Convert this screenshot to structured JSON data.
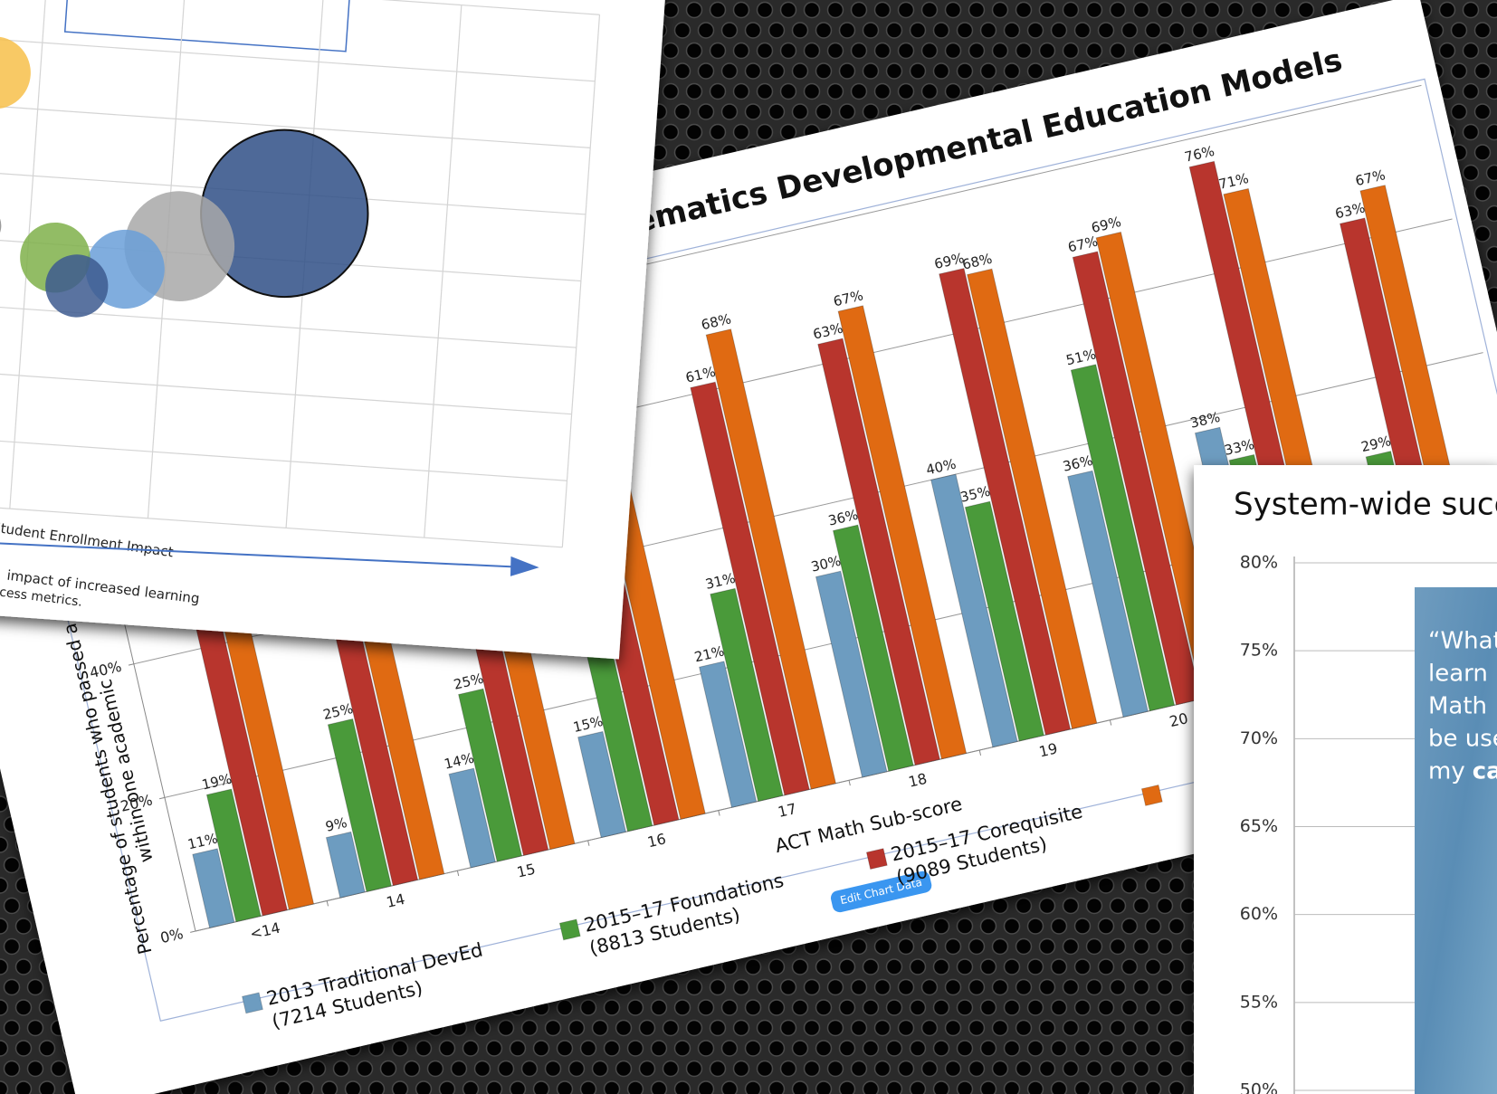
{
  "chart_data": [
    {
      "type": "scatter",
      "annotations": [
        "Student Enrollment Impact",
        "impact of increased learning",
        "cess metrics."
      ],
      "x": [
        0.2,
        0.37,
        0.71,
        1.09,
        1.83,
        -0.33,
        -0.35,
        -0.33
      ],
      "y": [
        3.8,
        3.4,
        3.7,
        4.1,
        4.7,
        6.5,
        4.2,
        3.7
      ],
      "sizes": [
        15,
        12,
        19,
        37,
        85,
        16,
        5,
        4
      ],
      "colors": [
        "#7fb04a",
        "#3d5a8f",
        "#6a9fd8",
        "#a8a8a8",
        "#2f4f86",
        "#f7c04a",
        "#8a8a8a",
        "#4f7fc0"
      ],
      "xlim": [
        -1,
        4
      ],
      "ylim": [
        0,
        8
      ]
    },
    {
      "type": "bar",
      "title": "ematics Developmental Education Models",
      "xlabel": "ACT Math Sub-score",
      "ylabel": [
        "Percentage of students who passed a co",
        "within one academic"
      ],
      "categories": [
        "<14",
        "14",
        "15",
        "16",
        "17",
        "18",
        "19",
        "20",
        null,
        null
      ],
      "series": [
        {
          "name": "2013 Traditional DevEd\n(7214 Students)",
          "color": "#6d9cc0",
          "values": [
            11,
            9,
            14,
            15,
            21,
            30,
            40,
            36,
            38,
            null
          ],
          "value_labels": [
            "11%",
            "9%",
            "14%",
            "15%",
            "21%",
            "30%",
            "40%",
            "36%",
            "38%",
            null
          ]
        },
        {
          "name": "2015–17 Foundations\n(8813 Students)",
          "color": "#4a9a3a",
          "values": [
            19,
            25,
            25,
            29,
            31,
            36,
            35,
            51,
            33,
            29
          ],
          "value_labels": [
            "19%",
            "25%",
            "25%",
            "29%",
            "31%",
            "36%",
            "35%",
            "51%",
            "33%",
            "29%"
          ]
        },
        {
          "name": "2015–17 Corequisite\n(9089 Students)",
          "color": "#b8352d",
          "values": [
            47,
            52,
            55,
            60,
            61,
            63,
            69,
            67,
            76,
            63
          ],
          "value_labels": [
            null,
            null,
            null,
            null,
            "61%",
            "63%",
            "69%",
            "67%",
            "76%",
            "63%"
          ]
        },
        {
          "name": null,
          "color": "#e06a12",
          "values": [
            45,
            50,
            57,
            65,
            68,
            67,
            68,
            69,
            71,
            67
          ],
          "value_labels": [
            null,
            null,
            null,
            null,
            "68%",
            "67%",
            "68%",
            "69%",
            "71%",
            "67%"
          ]
        }
      ],
      "ylim": [
        0,
        80
      ],
      "yticks": [
        {
          "value": 0,
          "label": "0%"
        },
        {
          "value": 20,
          "label": "20%"
        },
        {
          "value": 40,
          "label": "40%"
        },
        {
          "value": 60,
          "label": null
        },
        {
          "value": 80,
          "label": null
        }
      ],
      "grid": true,
      "button": "Edit Chart Data"
    },
    {
      "type": "line",
      "title": "System-wide succ",
      "ylim": [
        50,
        80
      ],
      "yticks": [
        {
          "value": 80,
          "label": "80%"
        },
        {
          "value": 75,
          "label": "75%"
        },
        {
          "value": 70,
          "label": "70%"
        },
        {
          "value": 65,
          "label": "65%"
        },
        {
          "value": 60,
          "label": "60%"
        },
        {
          "value": 55,
          "label": "55%"
        },
        {
          "value": 50,
          "label": "50%"
        }
      ],
      "grid": true,
      "quote_lines": [
        "“What",
        "learn i",
        "Math",
        "be use"
      ],
      "quote_last": [
        "my",
        "ca"
      ]
    }
  ]
}
